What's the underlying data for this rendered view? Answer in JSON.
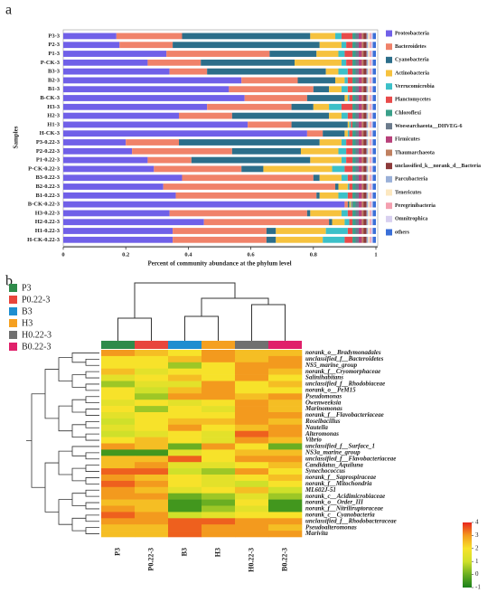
{
  "chart_data": [
    {
      "type": "stacked-barh",
      "panel_label": "a",
      "xlabel": "Percent of community abundance at the phylum level",
      "ylabel": "Samples",
      "categories": [
        "P3-3",
        "P2-3",
        "P1-3",
        "P-CK-3",
        "B3-3",
        "B2-3",
        "B1-3",
        "B-CK-3",
        "H3-3",
        "H2-3",
        "H1-3",
        "H-CK-3",
        "P3-0.22-3",
        "P2-0.22-3",
        "P1-0.22-3",
        "P-CK-0.22-3",
        "B3-0.22-3",
        "B2-0.22-3",
        "B1-0.22-3",
        "B-CK-0.22-3",
        "H3-0.22-3",
        "H2-0.22-3",
        "H1-0.22-3",
        "H-CK-0.22-3"
      ],
      "xlim": [
        0,
        1
      ],
      "xticks": [
        0,
        0.2,
        0.4,
        0.6,
        0.8,
        1
      ],
      "legend": "right",
      "series": [
        {
          "name": "Proteobacteria",
          "color": "#7060e8",
          "values": [
            0.17,
            0.18,
            0.33,
            0.27,
            0.34,
            0.57,
            0.53,
            0.58,
            0.46,
            0.37,
            0.59,
            0.78,
            0.2,
            0.22,
            0.27,
            0.29,
            0.38,
            0.32,
            0.36,
            0.9,
            0.34,
            0.45,
            0.35,
            0.35
          ]
        },
        {
          "name": "Bacteroidetes",
          "color": "#f0826a",
          "values": [
            0.21,
            0.17,
            0.33,
            0.17,
            0.12,
            0.18,
            0.27,
            0.2,
            0.27,
            0.17,
            0.14,
            0.05,
            0.17,
            0.32,
            0.14,
            0.28,
            0.42,
            0.55,
            0.45,
            0.01,
            0.44,
            0.4,
            0.3,
            0.3
          ]
        },
        {
          "name": "Cyanobacteria",
          "color": "#2c6e8a",
          "values": [
            0.41,
            0.47,
            0.15,
            0.3,
            0.38,
            0.12,
            0.05,
            0.12,
            0.07,
            0.31,
            0.18,
            0.07,
            0.45,
            0.22,
            0.38,
            0.07,
            0.02,
            0.01,
            0.01,
            0.005,
            0.01,
            0.01,
            0.03,
            0.03
          ]
        },
        {
          "name": "Actinobacteria",
          "color": "#f6c23e",
          "values": [
            0.08,
            0.07,
            0.07,
            0.15,
            0.04,
            0.03,
            0.04,
            0.01,
            0.05,
            0.04,
            0.005,
            0.01,
            0.07,
            0.12,
            0.1,
            0.22,
            0.07,
            0.03,
            0.06,
            0.005,
            0.1,
            0.04,
            0.16,
            0.15
          ]
        },
        {
          "name": "Verrucomicrobia",
          "color": "#3cc0c8",
          "values": [
            0.02,
            0.015,
            0.02,
            0.015,
            0.03,
            0.01,
            0.02,
            0.005,
            0.04,
            0.02,
            0.005,
            0.005,
            0.015,
            0.025,
            0.015,
            0.04,
            0.02,
            0.005,
            0.03,
            0.003,
            0.02,
            0.015,
            0.07,
            0.07
          ]
        },
        {
          "name": "Planctomycetes",
          "color": "#e84a4a",
          "values": [
            0.035,
            0.02,
            0.025,
            0.02,
            0.015,
            0.015,
            0.015,
            0.01,
            0.035,
            0.015,
            0.005,
            0.01,
            0.02,
            0.02,
            0.02,
            0.025,
            0.015,
            0.01,
            0.015,
            0.002,
            0.015,
            0.01,
            0.015,
            0.025
          ]
        },
        {
          "name": "Chloroflexi",
          "color": "#3aa08a",
          "values": [
            0.01,
            0.01,
            0.01,
            0.01,
            0.01,
            0.01,
            0.01,
            0.01,
            0.01,
            0.01,
            0.01,
            0.01,
            0.01,
            0.01,
            0.01,
            0.01,
            0.01,
            0.01,
            0.01,
            0.01,
            0.01,
            0.01,
            0.01,
            0.01
          ]
        },
        {
          "name": "Woesearchaeota__DHVEG-6",
          "color": "#6b7b8c",
          "values": [
            0.01,
            0.01,
            0.01,
            0.01,
            0.01,
            0.01,
            0.01,
            0.01,
            0.01,
            0.01,
            0.01,
            0.01,
            0.01,
            0.01,
            0.01,
            0.01,
            0.01,
            0.01,
            0.01,
            0.01,
            0.01,
            0.01,
            0.01,
            0.01
          ]
        },
        {
          "name": "Firmicutes",
          "color": "#b8407a",
          "values": [
            0.01,
            0.01,
            0.01,
            0.01,
            0.01,
            0.01,
            0.01,
            0.01,
            0.01,
            0.01,
            0.01,
            0.01,
            0.01,
            0.01,
            0.01,
            0.01,
            0.01,
            0.01,
            0.01,
            0.01,
            0.01,
            0.01,
            0.01,
            0.01
          ]
        },
        {
          "name": "Thaumarchaeota",
          "color": "#c08060",
          "values": [
            0.005,
            0.005,
            0.005,
            0.005,
            0.005,
            0.005,
            0.005,
            0.005,
            0.005,
            0.005,
            0.005,
            0.005,
            0.005,
            0.005,
            0.005,
            0.005,
            0.005,
            0.005,
            0.005,
            0.005,
            0.005,
            0.005,
            0.005,
            0.005
          ]
        },
        {
          "name": "unclassified_k__norank_d__Bacteria",
          "color": "#8c3a3a",
          "values": [
            0.01,
            0.01,
            0.01,
            0.01,
            0.01,
            0.01,
            0.01,
            0.01,
            0.01,
            0.01,
            0.01,
            0.01,
            0.01,
            0.01,
            0.01,
            0.01,
            0.01,
            0.01,
            0.01,
            0.01,
            0.01,
            0.01,
            0.01,
            0.01
          ]
        },
        {
          "name": "Parcubacteria",
          "color": "#9ab0d8",
          "values": [
            0.005,
            0.005,
            0.005,
            0.005,
            0.005,
            0.005,
            0.005,
            0.005,
            0.005,
            0.005,
            0.005,
            0.005,
            0.005,
            0.005,
            0.005,
            0.005,
            0.005,
            0.005,
            0.005,
            0.005,
            0.005,
            0.005,
            0.005,
            0.005
          ]
        },
        {
          "name": "Tenericutes",
          "color": "#fce8c0",
          "values": [
            0.005,
            0.005,
            0.005,
            0.005,
            0.005,
            0.005,
            0.005,
            0.005,
            0.005,
            0.005,
            0.005,
            0.005,
            0.005,
            0.005,
            0.005,
            0.005,
            0.005,
            0.005,
            0.005,
            0.005,
            0.005,
            0.005,
            0.005,
            0.005
          ]
        },
        {
          "name": "Peregrinibacteria",
          "color": "#f4a0b0",
          "values": [
            0.005,
            0.005,
            0.005,
            0.005,
            0.005,
            0.005,
            0.005,
            0.005,
            0.005,
            0.005,
            0.005,
            0.005,
            0.005,
            0.005,
            0.005,
            0.005,
            0.005,
            0.005,
            0.005,
            0.005,
            0.005,
            0.005,
            0.005,
            0.005
          ]
        },
        {
          "name": "Omnitrophica",
          "color": "#d8d0f0",
          "values": [
            0.005,
            0.005,
            0.005,
            0.005,
            0.005,
            0.005,
            0.005,
            0.005,
            0.005,
            0.005,
            0.005,
            0.005,
            0.005,
            0.005,
            0.005,
            0.005,
            0.005,
            0.005,
            0.005,
            0.005,
            0.005,
            0.005,
            0.005,
            0.005
          ]
        },
        {
          "name": "others",
          "color": "#3a6fd8",
          "values": [
            0.01,
            0.01,
            0.01,
            0.01,
            0.01,
            0.01,
            0.01,
            0.01,
            0.01,
            0.01,
            0.01,
            0.01,
            0.01,
            0.01,
            0.01,
            0.01,
            0.01,
            0.01,
            0.01,
            0.01,
            0.01,
            0.01,
            0.01,
            0.01
          ]
        }
      ]
    },
    {
      "type": "heatmap",
      "panel_label": "b",
      "columns": [
        "P3",
        "P0.22-3",
        "B3",
        "H3",
        "H0.22-3",
        "B0.22-3"
      ],
      "column_colors": [
        "#2e8b4a",
        "#e8453c",
        "#1e8ed0",
        "#f5a020",
        "#707070",
        "#e0206a"
      ],
      "rows": [
        "norank_o__Bradymonadales",
        "unclassified_f__Bacteroidetes",
        "NS5_marine_group",
        "norank_f__Cryomorphaceae",
        "Salinihabitans",
        "unclassified_f__Rhodobiaceae",
        "norank_o__PeM15",
        "Pseudomonas",
        "Owenweeksia",
        "Marinomonas",
        "norank_f__Flavobacteriaceae",
        "Roseibacillus",
        "Nautella",
        "Alteromonas",
        "Vibrio",
        "unclassified_f__Surface_1",
        "NS3a_marine_group",
        "unclassified_f__Flavobacteriaceae",
        "Candidatus_Aquiluna",
        "Synechococcus",
        "norank_f__Saprospiraceae",
        "norank_f__Mitochondria",
        "ML602J-51",
        "norank_c__Acidimicrobiaceae",
        "norank_o__Order_III",
        "norank_f__Nitriliruptoraceae",
        "norank_c__Cyanobacteria",
        "unclassified_f__Rhodobacteraceae",
        "Pseudoalteromonas",
        "Marivita"
      ],
      "values": [
        [
          3,
          2.5,
          2,
          3,
          2.5,
          2.5
        ],
        [
          2,
          2,
          2.5,
          3,
          2.5,
          3
        ],
        [
          2,
          2,
          0.5,
          2,
          3,
          3
        ],
        [
          2.5,
          1.5,
          2,
          2,
          3,
          2.5
        ],
        [
          1.5,
          2,
          2.5,
          2,
          3,
          2
        ],
        [
          0.5,
          1.5,
          1.5,
          3,
          2,
          2.5
        ],
        [
          2,
          1,
          2.5,
          3,
          2,
          2
        ],
        [
          2,
          0.5,
          3,
          3,
          2.5,
          3
        ],
        [
          1.5,
          2,
          1.5,
          2,
          3,
          2.5
        ],
        [
          2,
          0.5,
          2,
          1.5,
          3,
          2.5
        ],
        [
          1.5,
          2,
          2,
          2,
          3,
          3
        ],
        [
          1,
          2,
          2.5,
          2.5,
          3,
          2.5
        ],
        [
          1.5,
          2,
          3,
          2,
          2.5,
          3
        ],
        [
          1,
          1.5,
          2,
          1.5,
          3.5,
          3
        ],
        [
          2,
          2.5,
          2,
          1.5,
          3,
          2.5
        ],
        [
          3,
          2.5,
          0,
          3,
          2,
          0
        ],
        [
          -0.5,
          -0.5,
          1.5,
          2,
          2.5,
          2.5
        ],
        [
          2.5,
          2.5,
          3.5,
          2,
          3,
          3
        ],
        [
          2.5,
          3,
          1.5,
          1.5,
          2,
          2.5
        ],
        [
          3.5,
          3.5,
          1,
          0.5,
          3,
          2
        ],
        [
          3,
          2.5,
          2,
          1.5,
          2,
          2.5
        ],
        [
          3.5,
          3,
          2,
          1.5,
          1,
          2
        ],
        [
          3,
          2.5,
          1.5,
          2,
          2.5,
          1
        ],
        [
          3,
          3,
          0,
          0.5,
          1.5,
          0.5
        ],
        [
          2.5,
          2.5,
          -0.5,
          0,
          2,
          -0.5
        ],
        [
          3,
          2.5,
          -0.5,
          0.5,
          1.5,
          -0.5
        ],
        [
          3.5,
          3,
          1,
          1.5,
          2,
          2
        ],
        [
          3,
          3,
          3.5,
          3.5,
          3,
          3
        ],
        [
          2.5,
          2.5,
          3.5,
          3,
          3,
          2.5
        ],
        [
          2.5,
          2.5,
          3.5,
          3,
          3,
          3
        ]
      ],
      "zlim": [
        -1,
        4
      ],
      "zticks": [
        4,
        3,
        2,
        1,
        0,
        -1
      ],
      "colorscale": [
        "#1a7f1a",
        "#6aae22",
        "#cfe02a",
        "#f7e22a",
        "#f39a1e",
        "#e8251e"
      ]
    }
  ]
}
